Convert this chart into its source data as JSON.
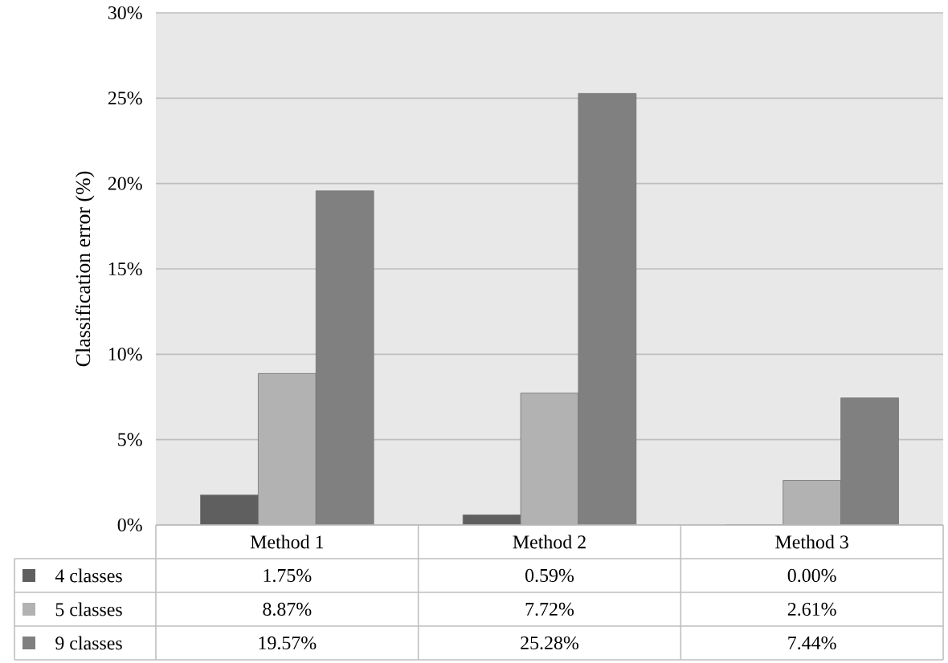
{
  "chart_data": {
    "type": "bar",
    "ylabel": "Classification error (%)",
    "categories": [
      "Method 1",
      "Method 2",
      "Method 3"
    ],
    "series": [
      {
        "name": "4 classes",
        "color": "#5f5f5f",
        "values": [
          1.75,
          0.59,
          0.0
        ],
        "value_labels": [
          "1.75%",
          "0.59%",
          "0.00%"
        ]
      },
      {
        "name": "5 classes",
        "color": "#b2b2b2",
        "values": [
          8.87,
          7.72,
          2.61
        ],
        "value_labels": [
          "8.87%",
          "7.72%",
          "2.61%"
        ]
      },
      {
        "name": "9 classes",
        "color": "#808080",
        "values": [
          19.57,
          25.28,
          7.44
        ],
        "value_labels": [
          "19.57%",
          "25.28%",
          "7.44%"
        ]
      }
    ],
    "ylim": [
      0,
      30
    ],
    "yticks": [
      {
        "value": 0,
        "label": "0%"
      },
      {
        "value": 5,
        "label": "5%"
      },
      {
        "value": 10,
        "label": "10%"
      },
      {
        "value": 15,
        "label": "15%"
      },
      {
        "value": 20,
        "label": "20%"
      },
      {
        "value": 25,
        "label": "25%"
      },
      {
        "value": 30,
        "label": "30%"
      }
    ],
    "grid": "y",
    "legend": "bottom left"
  }
}
